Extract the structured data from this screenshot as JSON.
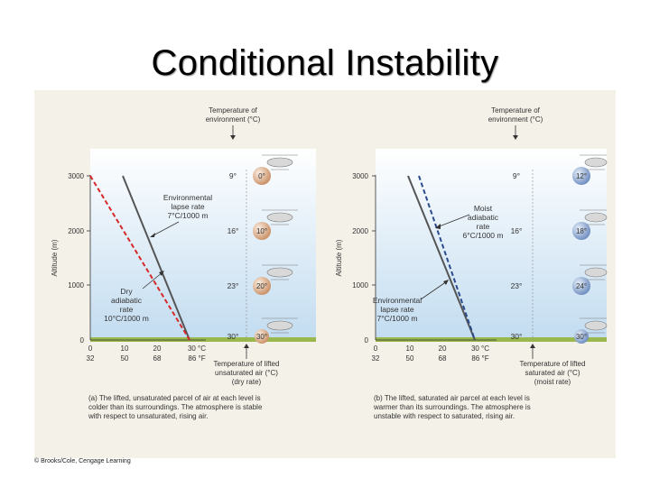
{
  "title": "Conditional Instability",
  "credit": "© Brooks/Cole, Cengage Learning",
  "panels": [
    {
      "id": "a",
      "env_header": [
        "Temperature of",
        "environment (°C)"
      ],
      "y_label": "Altitude (m)",
      "y_ticks": [
        "3000",
        "2000",
        "1000",
        "0"
      ],
      "x_ticks_c": [
        "0",
        "10",
        "20",
        "30 °C"
      ],
      "x_ticks_f": [
        "32",
        "50",
        "68",
        "86 °F"
      ],
      "env_temps": [
        "9°",
        "16°",
        "23°",
        "30°"
      ],
      "parcel_temps": [
        "0°",
        "10°",
        "20°",
        "30°"
      ],
      "parcel_header": [
        "Temperature of lifted",
        "unsaturated air (°C)",
        "(dry rate)"
      ],
      "env_rate_label": [
        "Environmental",
        "lapse rate",
        "7°C/1000 m"
      ],
      "parcel_rate_label": [
        "Dry",
        "adiabatic",
        "rate",
        "10°C/1000 m"
      ],
      "caption": [
        "(a) The lifted, unsaturated parcel of air at each level is",
        "colder than its surroundings. The atmosphere is stable",
        "with respect to unsaturated, rising air."
      ],
      "parcel_color": "#d6a37e"
    },
    {
      "id": "b",
      "env_header": [
        "Temperature of",
        "environment (°C)"
      ],
      "y_label": "Altitude (m)",
      "y_ticks": [
        "3000",
        "2000",
        "1000",
        "0"
      ],
      "x_ticks_c": [
        "0",
        "10",
        "20",
        "30 °C"
      ],
      "x_ticks_f": [
        "32",
        "50",
        "68",
        "86 °F"
      ],
      "env_temps": [
        "9°",
        "16°",
        "23°",
        "30°"
      ],
      "parcel_temps": [
        "12°",
        "18°",
        "24°",
        "30°"
      ],
      "parcel_header": [
        "Temperature of lifted",
        "saturated air (°C)",
        "(moist rate)"
      ],
      "env_rate_label": [
        "Environmental",
        "lapse rate",
        "7°C/1000 m"
      ],
      "parcel_rate_label": [
        "Moist",
        "adiabatic",
        "rate",
        "6°C/1000 m"
      ],
      "caption": [
        "(b) The lifted, saturated air parcel at each level is",
        "warmer than its surroundings. The atmosphere is",
        "unstable with respect to saturated, rising air."
      ],
      "parcel_color": "#7f9cc8"
    }
  ],
  "colors": {
    "dry_line": "#d62828",
    "moist_line": "#2b4a8c",
    "env_line": "#555555"
  }
}
